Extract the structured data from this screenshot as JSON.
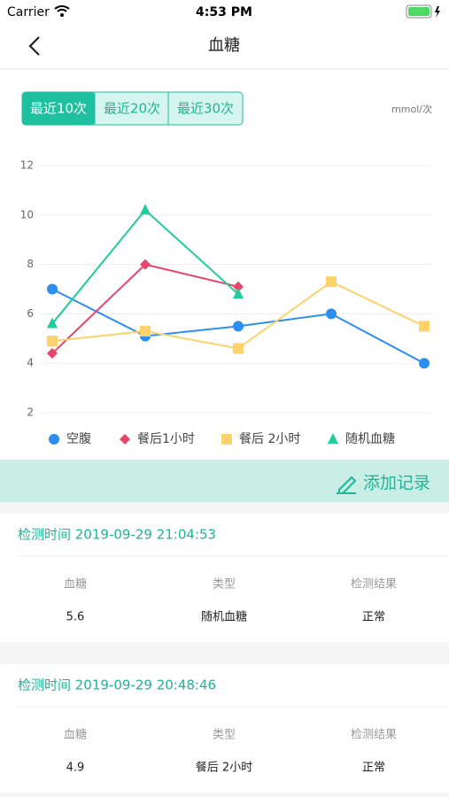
{
  "status_bar": {
    "carrier": "Carrier",
    "time": "4:53 PM"
  },
  "nav": {
    "title": "血糖"
  },
  "tabs": [
    "最近10次",
    "最近20次",
    "最近30次"
  ],
  "unit": "mmol/次",
  "chart_data": {
    "type": "line",
    "categories": [
      null,
      null,
      null,
      null,
      null
    ],
    "ylim": [
      2,
      12
    ],
    "yticks": [
      2,
      4,
      6,
      8,
      10,
      12
    ],
    "grid": true,
    "series": [
      {
        "name": "空腹",
        "color": "#2b8ef0",
        "marker": "circle",
        "values": [
          7.0,
          5.1,
          5.5,
          6.0,
          4.0
        ]
      },
      {
        "name": "餐后1小时",
        "color": "#e8456a",
        "marker": "diamond",
        "values": [
          4.4,
          8.0,
          7.1,
          null,
          null
        ]
      },
      {
        "name": "餐后 2小时",
        "color": "#fdd26a",
        "marker": "square",
        "values": [
          4.9,
          5.3,
          4.6,
          7.3,
          5.5
        ]
      },
      {
        "name": "随机血糖",
        "color": "#1fcc9a",
        "marker": "triangle",
        "values": [
          5.6,
          10.2,
          6.8,
          null,
          null
        ]
      }
    ]
  },
  "add_record": "添加记录",
  "records": [
    {
      "title": "检测时间 2019-09-29 21:04:53",
      "headers": [
        "血糖",
        "类型",
        "检测结果"
      ],
      "values": [
        "5.6",
        "随机血糖",
        "正常"
      ]
    },
    {
      "title": "检测时间 2019-09-29 20:48:46",
      "headers": [
        "血糖",
        "类型",
        "检测结果"
      ],
      "values": [
        "4.9",
        "餐后 2小时",
        "正常"
      ]
    }
  ]
}
